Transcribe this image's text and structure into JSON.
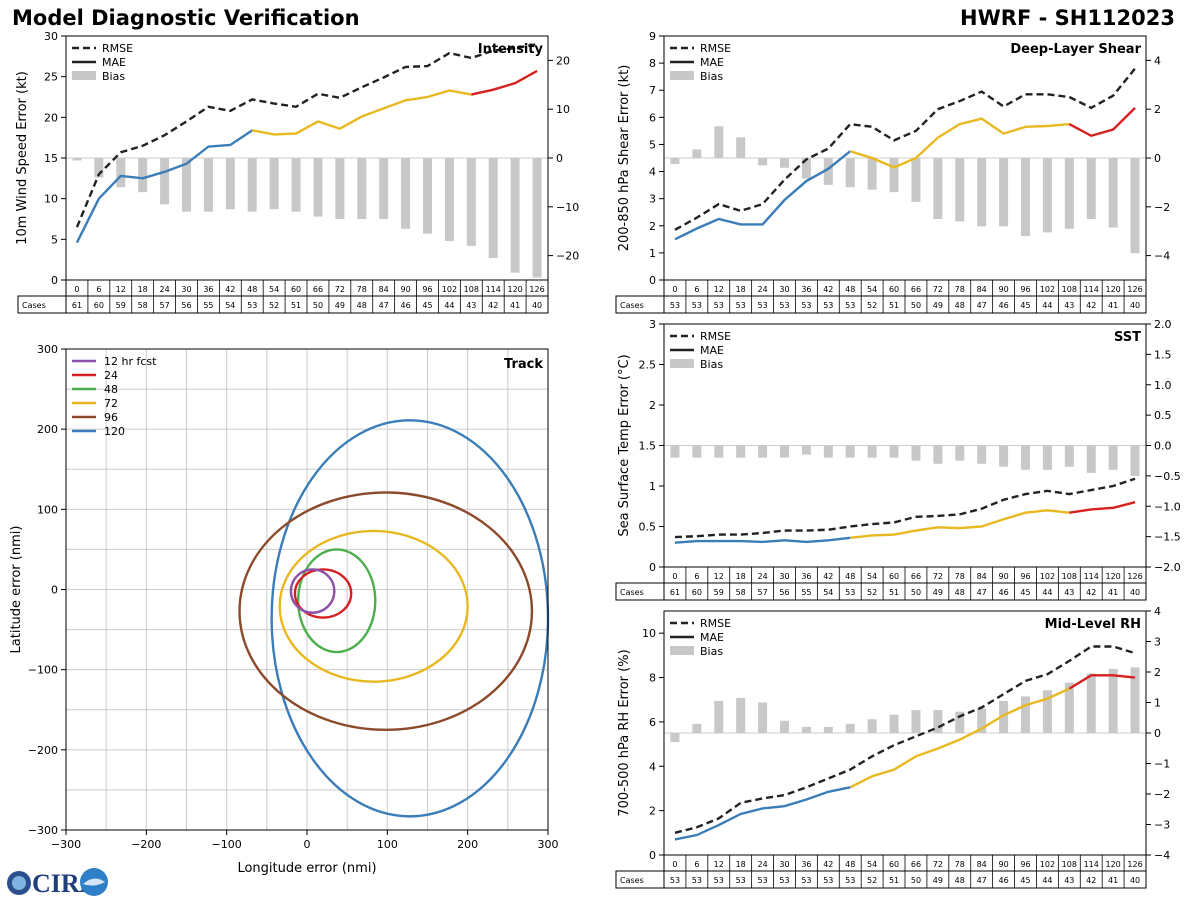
{
  "header": {
    "title_left": "Model Diagnostic Verification",
    "title_right": "HWRF - SH112023"
  },
  "logo": {
    "text": "CIRA"
  },
  "legend": {
    "rmse": "RMSE",
    "mae": "MAE",
    "bias": "Bias"
  },
  "colors": {
    "rmse": "#222222",
    "mae_early": "#3a7db8",
    "mae_mid": "#e8b820",
    "mae_late": "#d62020",
    "bias": "#c8c8c8",
    "grid": "#cccccc"
  },
  "chart_data": [
    {
      "id": "intensity",
      "type": "line",
      "title": "Intensity",
      "ylabel": "10m Wind Speed Error (kt)",
      "ylim": [
        0,
        30
      ],
      "yticks": [
        0,
        5,
        10,
        15,
        20,
        25,
        30
      ],
      "y2lim": [
        -25,
        25
      ],
      "y2ticks": [
        -20,
        -10,
        0,
        10,
        20
      ],
      "x": [
        0,
        6,
        12,
        18,
        24,
        30,
        36,
        42,
        48,
        54,
        60,
        66,
        72,
        78,
        84,
        90,
        96,
        102,
        108,
        114,
        120,
        126
      ],
      "cases": [
        61,
        60,
        59,
        58,
        57,
        56,
        55,
        54,
        53,
        52,
        51,
        50,
        49,
        48,
        47,
        46,
        45,
        44,
        43,
        42,
        41,
        40
      ],
      "cases_label": "Cases",
      "rmse": [
        6.5,
        13,
        15.7,
        16.5,
        17.8,
        19.5,
        21.3,
        20.8,
        22.2,
        21.7,
        21.3,
        22.9,
        22.4,
        23.7,
        24.9,
        26.2,
        26.3,
        27.9,
        27.3,
        28.2,
        28.5,
        29
      ],
      "mae": [
        4.6,
        10,
        12.8,
        12.5,
        13.3,
        14.3,
        16.4,
        16.6,
        18.4,
        17.9,
        18,
        19.5,
        18.6,
        20.1,
        21.1,
        22.1,
        22.5,
        23.3,
        22.8,
        23.4,
        24.2,
        25.7
      ],
      "bias": [
        -0.5,
        -4,
        -6,
        -7,
        -9.5,
        -11,
        -11,
        -10.5,
        -11,
        -10.5,
        -11,
        -12,
        -12.5,
        -12.5,
        -12.5,
        -14.5,
        -15.5,
        -17,
        -18,
        -20.5,
        -23.5,
        -24.5
      ]
    },
    {
      "id": "shear",
      "type": "line",
      "title": "Deep-Layer Shear",
      "ylabel": "200-850 hPa Shear Error (kt)",
      "ylim": [
        0,
        9
      ],
      "yticks": [
        0,
        1,
        2,
        3,
        4,
        5,
        6,
        7,
        8,
        9
      ],
      "y2lim": [
        -5,
        5
      ],
      "y2ticks": [
        -4,
        -2,
        0,
        2,
        4
      ],
      "x": [
        0,
        6,
        12,
        18,
        24,
        30,
        36,
        42,
        48,
        54,
        60,
        66,
        72,
        78,
        84,
        90,
        96,
        102,
        108,
        114,
        120,
        126
      ],
      "cases": [
        53,
        53,
        53,
        53,
        53,
        53,
        53,
        53,
        53,
        52,
        51,
        50,
        49,
        48,
        47,
        46,
        45,
        44,
        43,
        42,
        41,
        40
      ],
      "cases_label": "Cases",
      "rmse": [
        1.85,
        2.3,
        2.8,
        2.55,
        2.8,
        3.7,
        4.45,
        4.85,
        5.75,
        5.65,
        5.15,
        5.5,
        6.3,
        6.6,
        6.95,
        6.4,
        6.85,
        6.85,
        6.75,
        6.35,
        6.8,
        7.8
      ],
      "mae": [
        1.5,
        1.9,
        2.25,
        2.05,
        2.05,
        2.95,
        3.65,
        4.1,
        4.75,
        4.5,
        4.15,
        4.5,
        5.25,
        5.75,
        5.95,
        5.4,
        5.65,
        5.68,
        5.75,
        5.32,
        5.55,
        6.35
      ],
      "bias": [
        -0.25,
        0.35,
        1.3,
        0.85,
        -0.3,
        -0.4,
        -0.85,
        -1.1,
        -1.2,
        -1.3,
        -1.4,
        -1.8,
        -2.5,
        -2.6,
        -2.8,
        -2.8,
        -3.2,
        -3.05,
        -2.9,
        -2.5,
        -2.85,
        -3.9
      ]
    },
    {
      "id": "sst",
      "type": "line",
      "title": "SST",
      "ylabel": "Sea Surface Temp Error (°C)",
      "ylim": [
        0,
        3.0
      ],
      "yticks": [
        0.0,
        0.5,
        1.0,
        1.5,
        2.0,
        2.5,
        3.0
      ],
      "y2lim": [
        -2.0,
        2.0
      ],
      "y2ticks": [
        -2.0,
        -1.5,
        -1.0,
        -0.5,
        0.0,
        0.5,
        1.0,
        1.5,
        2.0
      ],
      "x": [
        0,
        6,
        12,
        18,
        24,
        30,
        36,
        42,
        48,
        54,
        60,
        66,
        72,
        78,
        84,
        90,
        96,
        102,
        108,
        114,
        120,
        126
      ],
      "cases": [
        61,
        60,
        59,
        58,
        57,
        56,
        55,
        54,
        53,
        52,
        51,
        50,
        49,
        48,
        47,
        46,
        45,
        44,
        43,
        42,
        41,
        40
      ],
      "cases_label": "Cases",
      "rmse": [
        0.37,
        0.38,
        0.4,
        0.4,
        0.42,
        0.45,
        0.45,
        0.46,
        0.5,
        0.53,
        0.55,
        0.62,
        0.63,
        0.65,
        0.72,
        0.83,
        0.9,
        0.94,
        0.9,
        0.95,
        1.0,
        1.09
      ],
      "mae": [
        0.3,
        0.32,
        0.32,
        0.32,
        0.31,
        0.33,
        0.31,
        0.33,
        0.36,
        0.39,
        0.4,
        0.45,
        0.49,
        0.48,
        0.5,
        0.59,
        0.67,
        0.7,
        0.67,
        0.71,
        0.73,
        0.8
      ],
      "bias": [
        -0.2,
        -0.2,
        -0.2,
        -0.2,
        -0.2,
        -0.2,
        -0.15,
        -0.2,
        -0.2,
        -0.2,
        -0.2,
        -0.25,
        -0.3,
        -0.25,
        -0.3,
        -0.35,
        -0.4,
        -0.4,
        -0.35,
        -0.45,
        -0.4,
        -0.5
      ]
    },
    {
      "id": "rh",
      "type": "line",
      "title": "Mid-Level RH",
      "ylabel": "700-500 hPa RH Error (%)",
      "ylim": [
        0,
        11
      ],
      "yticks": [
        0,
        2,
        4,
        6,
        8,
        10
      ],
      "y2lim": [
        -4,
        4
      ],
      "y2ticks": [
        -4,
        -3,
        -2,
        -1,
        0,
        1,
        2,
        3,
        4
      ],
      "x": [
        0,
        6,
        12,
        18,
        24,
        30,
        36,
        42,
        48,
        54,
        60,
        66,
        72,
        78,
        84,
        90,
        96,
        102,
        108,
        114,
        120,
        126
      ],
      "cases": [
        53,
        53,
        53,
        53,
        53,
        53,
        53,
        53,
        53,
        52,
        51,
        50,
        49,
        48,
        47,
        46,
        45,
        44,
        43,
        42,
        41,
        40
      ],
      "cases_label": "Cases",
      "rmse": [
        1.0,
        1.25,
        1.65,
        2.35,
        2.55,
        2.7,
        3.05,
        3.45,
        3.85,
        4.45,
        4.95,
        5.35,
        5.75,
        6.25,
        6.65,
        7.25,
        7.85,
        8.15,
        8.75,
        9.4,
        9.4,
        9.1
      ],
      "mae": [
        0.7,
        0.9,
        1.35,
        1.85,
        2.1,
        2.2,
        2.5,
        2.85,
        3.05,
        3.55,
        3.85,
        4.45,
        4.8,
        5.2,
        5.7,
        6.3,
        6.75,
        7.05,
        7.5,
        8.1,
        8.1,
        8.0
      ],
      "bias": [
        -0.3,
        0.3,
        1.05,
        1.15,
        1.0,
        0.4,
        0.2,
        0.2,
        0.3,
        0.45,
        0.6,
        0.75,
        0.75,
        0.7,
        0.8,
        1.05,
        1.2,
        1.4,
        1.65,
        1.95,
        2.1,
        2.15
      ]
    },
    {
      "id": "track",
      "type": "scatter",
      "title": "Track",
      "xlabel": "Longitude error (nmi)",
      "ylabel": "Latitude error (nmi)",
      "xlim": [
        -300,
        300
      ],
      "ylim": [
        -300,
        300
      ],
      "xticks": [
        -300,
        -200,
        -100,
        0,
        100,
        200,
        300
      ],
      "yticks": [
        -300,
        -200,
        -100,
        0,
        100,
        200,
        300
      ],
      "ellipses": [
        {
          "label": "12 hr fcst",
          "color": "#8e4fa8",
          "cx": 7,
          "cy": -2,
          "rx": 27,
          "ry": 27
        },
        {
          "label": "24",
          "color": "#d62020",
          "cx": 20,
          "cy": -5,
          "rx": 35,
          "ry": 30
        },
        {
          "label": "48",
          "color": "#4cae4c",
          "cx": 37,
          "cy": -14,
          "rx": 48,
          "ry": 64
        },
        {
          "label": "72",
          "color": "#e8b820",
          "cx": 83,
          "cy": -21,
          "rx": 117,
          "ry": 94
        },
        {
          "label": "96",
          "color": "#8b4a2b",
          "cx": 98,
          "cy": -27,
          "rx": 182,
          "ry": 148
        },
        {
          "label": "120",
          "color": "#3a7db8",
          "cx": 128,
          "cy": -36,
          "rx": 172,
          "ry": 247
        }
      ]
    }
  ]
}
